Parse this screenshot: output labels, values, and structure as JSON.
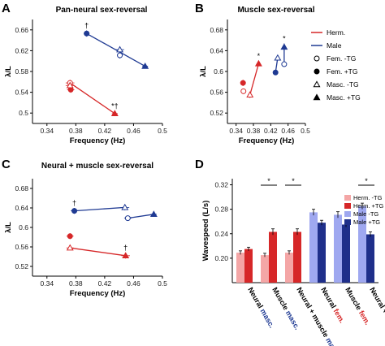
{
  "chart_data": [
    {
      "panel": "A",
      "type": "scatter",
      "title": "Pan-neural sex-reversal",
      "xlabel": "Frequency (Hz)",
      "ylabel": "λ/L",
      "xlim": [
        0.32,
        0.5
      ],
      "ylim": [
        0.48,
        0.68
      ],
      "xticks": [
        "0.34",
        "0.38",
        "0.42",
        "0.46",
        "0.5"
      ],
      "yticks": [
        "0.5",
        "0.54",
        "0.58",
        "0.62",
        "0.66"
      ],
      "colors": {
        "herm": "#d62728",
        "male": "#1f3a93"
      },
      "series": [
        {
          "group": "herm",
          "points": [
            {
              "x": 0.372,
              "y": 0.558,
              "xerr": 0.006,
              "yerr": 0.006,
              "marker": "circle-open"
            },
            {
              "x": 0.373,
              "y": 0.545,
              "xerr": 0.005,
              "yerr": 0.006,
              "marker": "circle-filled"
            },
            {
              "x": 0.372,
              "y": 0.553,
              "xerr": 0.006,
              "yerr": 0.006,
              "marker": "triangle-open"
            },
            {
              "x": 0.434,
              "y": 0.499,
              "xerr": 0.004,
              "yerr": 0.005,
              "marker": "triangle-filled",
              "label": "*†"
            }
          ]
        },
        {
          "group": "male",
          "points": [
            {
              "x": 0.395,
              "y": 0.653,
              "xerr": 0.004,
              "yerr": 0.006,
              "marker": "circle-filled",
              "label": "†"
            },
            {
              "x": 0.441,
              "y": 0.622,
              "xerr": 0.006,
              "yerr": 0.006,
              "marker": "triangle-open"
            },
            {
              "x": 0.441,
              "y": 0.611,
              "xerr": 0.004,
              "yerr": 0.006,
              "marker": "circle-open"
            },
            {
              "x": 0.476,
              "y": 0.59,
              "xerr": 0.004,
              "yerr": 0.004,
              "marker": "triangle-filled"
            }
          ]
        }
      ],
      "lines": [
        {
          "group": "herm",
          "from": [
            0.372,
            0.558
          ],
          "to": [
            0.434,
            0.499
          ]
        },
        {
          "group": "male",
          "from": [
            0.395,
            0.653
          ],
          "to": [
            0.476,
            0.59
          ]
        }
      ]
    },
    {
      "panel": "B",
      "type": "scatter",
      "title": "Muscle sex-reversal",
      "xlabel": "Frequency (Hz)",
      "ylabel": "λ/L",
      "xlim": [
        0.32,
        0.5
      ],
      "ylim": [
        0.5,
        0.7
      ],
      "xticks": [
        "0.34",
        "0.38",
        "0.42",
        "0.46",
        "0.5"
      ],
      "yticks": [
        "0.52",
        "0.56",
        "0.6",
        "0.64",
        "0.68"
      ],
      "series": [
        {
          "group": "herm",
          "points": [
            {
              "x": 0.356,
              "y": 0.578,
              "xerr": 0.004,
              "yerr": 0.006,
              "marker": "circle-filled"
            },
            {
              "x": 0.357,
              "y": 0.562,
              "xerr": 0.004,
              "yerr": 0.005,
              "marker": "circle-open"
            },
            {
              "x": 0.372,
              "y": 0.555,
              "xerr": 0.005,
              "yerr": 0.006,
              "marker": "triangle-open"
            },
            {
              "x": 0.392,
              "y": 0.615,
              "xerr": 0.004,
              "yerr": 0.005,
              "marker": "triangle-filled",
              "label": "*"
            }
          ]
        },
        {
          "group": "male",
          "points": [
            {
              "x": 0.431,
              "y": 0.598,
              "xerr": 0.003,
              "yerr": 0.004,
              "marker": "circle-filled"
            },
            {
              "x": 0.436,
              "y": 0.626,
              "xerr": 0.003,
              "yerr": 0.005,
              "marker": "triangle-open"
            },
            {
              "x": 0.451,
              "y": 0.647,
              "xerr": 0.004,
              "yerr": 0.007,
              "marker": "triangle-filled",
              "label": "*"
            },
            {
              "x": 0.451,
              "y": 0.614,
              "xerr": 0.003,
              "yerr": 0.005,
              "marker": "circle-open"
            }
          ]
        }
      ],
      "lines": [
        {
          "group": "herm",
          "from": [
            0.372,
            0.555
          ],
          "to": [
            0.392,
            0.615
          ]
        },
        {
          "group": "male",
          "from": [
            0.431,
            0.598
          ],
          "to": [
            0.436,
            0.626
          ]
        },
        {
          "group": "male",
          "from": [
            0.451,
            0.614
          ],
          "to": [
            0.451,
            0.647
          ]
        }
      ]
    },
    {
      "panel": "C",
      "type": "scatter",
      "title": "Neural + muscle sex-reversal",
      "xlabel": "Frequency (Hz)",
      "ylabel": "λ/L",
      "xlim": [
        0.32,
        0.5
      ],
      "ylim": [
        0.5,
        0.7
      ],
      "xticks": [
        "0.34",
        "0.38",
        "0.42",
        "0.46",
        "0.5"
      ],
      "yticks": [
        "0.52",
        "0.56",
        "0.6",
        "0.64",
        "0.68"
      ],
      "series": [
        {
          "group": "herm",
          "points": [
            {
              "x": 0.372,
              "y": 0.582,
              "xerr": 0.005,
              "yerr": 0.006,
              "marker": "circle-filled"
            },
            {
              "x": 0.372,
              "y": 0.558,
              "xerr": 0.005,
              "yerr": 0.004,
              "marker": "triangle-open"
            },
            {
              "x": 0.449,
              "y": 0.542,
              "xerr": 0.006,
              "yerr": 0.006,
              "marker": "triangle-filled",
              "label": "†"
            }
          ]
        },
        {
          "group": "male",
          "points": [
            {
              "x": 0.378,
              "y": 0.634,
              "xerr": 0.005,
              "yerr": 0.006,
              "marker": "circle-filled",
              "label": "†"
            },
            {
              "x": 0.448,
              "y": 0.641,
              "xerr": 0.006,
              "yerr": 0.006,
              "marker": "triangle-open"
            },
            {
              "x": 0.452,
              "y": 0.619,
              "xerr": 0.005,
              "yerr": 0.004,
              "marker": "circle-open"
            },
            {
              "x": 0.488,
              "y": 0.627,
              "xerr": 0.004,
              "yerr": 0.004,
              "marker": "triangle-filled"
            }
          ]
        }
      ],
      "lines": [
        {
          "group": "herm",
          "from": [
            0.372,
            0.558
          ],
          "to": [
            0.449,
            0.542
          ]
        },
        {
          "group": "male",
          "from": [
            0.378,
            0.634
          ],
          "to": [
            0.448,
            0.641
          ]
        },
        {
          "group": "male",
          "from": [
            0.452,
            0.619
          ],
          "to": [
            0.488,
            0.627
          ]
        }
      ]
    },
    {
      "panel": "D",
      "type": "bar",
      "ylabel": "Wavespeed (L/s)",
      "ylim": [
        0.16,
        0.33
      ],
      "yticks": [
        "0.20",
        "0.24",
        "0.28",
        "0.32"
      ],
      "categories": [
        {
          "prefix": "Neural ",
          "suffix": "masc.",
          "color": "#1f3a93"
        },
        {
          "prefix": "Muscle ",
          "suffix": "masc.",
          "color": "#1f3a93"
        },
        {
          "prefix": "Neural + muscle ",
          "suffix": "masc.",
          "color": "#1f3a93"
        },
        {
          "prefix": "Neural ",
          "suffix": "fem.",
          "color": "#d62728"
        },
        {
          "prefix": "Muscle ",
          "suffix": "fem.",
          "color": "#d62728"
        },
        {
          "prefix": "Neural + muscle ",
          "suffix": "fem.",
          "color": "#d62728"
        }
      ],
      "series": [
        {
          "name": "Herm. -TG",
          "color": "#f4a6a6",
          "values": [
            0.209,
            0.205,
            0.209,
            null,
            null,
            null
          ],
          "errors": [
            0.003,
            0.003,
            0.003,
            null,
            null,
            null
          ]
        },
        {
          "name": "Herm. +TG",
          "color": "#d62728",
          "values": [
            0.215,
            0.243,
            0.243,
            null,
            null,
            null
          ],
          "errors": [
            0.003,
            0.005,
            0.005,
            null,
            null,
            null
          ]
        },
        {
          "name": "Male -TG",
          "color": "#9fa8f0",
          "values": [
            null,
            null,
            null,
            0.275,
            0.271,
            0.285
          ],
          "errors": [
            null,
            null,
            null,
            0.005,
            0.005,
            0.005
          ]
        },
        {
          "name": "Male +TG",
          "color": "#1f2f8a",
          "values": [
            null,
            null,
            null,
            0.258,
            0.255,
            0.239
          ],
          "errors": [
            null,
            null,
            null,
            0.004,
            0.004,
            0.004
          ]
        }
      ],
      "significance": [
        {
          "category": 1,
          "label": "*"
        },
        {
          "category": 2,
          "label": "*"
        },
        {
          "category": 5,
          "label": "*"
        }
      ]
    }
  ],
  "legend": {
    "items": [
      {
        "label": "Herm.",
        "kind": "line",
        "color": "#d62728"
      },
      {
        "label": "Male",
        "kind": "line",
        "color": "#1f3a93"
      },
      {
        "label": "Fem. -TG",
        "kind": "circle-open"
      },
      {
        "label": "Fem. +TG",
        "kind": "circle-filled"
      },
      {
        "label": "Masc. -TG",
        "kind": "triangle-open"
      },
      {
        "label": "Masc. +TG",
        "kind": "triangle-filled"
      }
    ]
  }
}
